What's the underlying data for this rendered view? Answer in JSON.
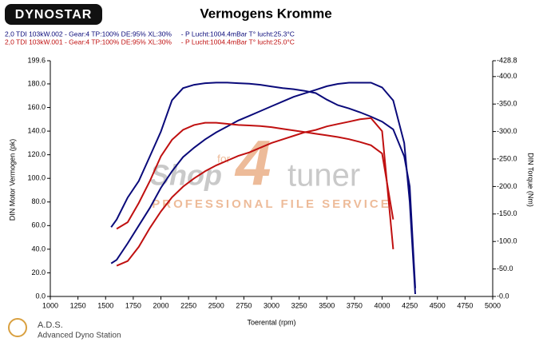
{
  "logo": "DYNOSTAR",
  "footer": {
    "brand": "A.D.S.",
    "subtitle": "Advanced Dyno Station"
  },
  "chart_data": {
    "type": "line",
    "title": "Vermogens Kromme",
    "xlabel": "Toerental (rpm)",
    "ylabel": "DIN Motor Vermogen (pk)",
    "y2label": "DIN Torque (Nm)",
    "annotations": [
      "Shop",
      "for",
      "4",
      "tuner",
      "PROFESSIONAL FILE SERVICE"
    ],
    "x": [
      1550,
      1600,
      1700,
      1800,
      1900,
      2000,
      2100,
      2200,
      2300,
      2400,
      2500,
      2600,
      2700,
      2800,
      2900,
      3000,
      3100,
      3200,
      3300,
      3400,
      3500,
      3600,
      3700,
      3800,
      3900,
      4000,
      4100,
      4200,
      4250,
      4300
    ],
    "series": [
      {
        "name": "2,0 TDI 103kW.002 - Gear:4 TP:100% DE:95% XL:30%     - P Lucht:1004.4mBar T° lucht:25.3°C",
        "color": "#0a0a7a",
        "values": [
          28,
          31,
          45,
          60,
          75,
          92,
          106,
          118,
          126,
          133,
          139,
          144,
          149,
          153,
          157,
          161,
          165,
          169,
          172,
          175,
          178,
          180,
          181,
          181,
          181,
          177,
          166,
          130,
          80,
          2
        ],
        "y2_values": [
          -126,
          -140,
          -180,
          -210,
          -255,
          -300,
          -357,
          -379,
          -385,
          -388,
          -389,
          -389,
          -388,
          -387,
          -385,
          -382,
          -379,
          -377,
          -374,
          -370,
          -358,
          -348,
          -342,
          -335,
          -327,
          -318,
          -304,
          -255,
          -200,
          -15
        ]
      },
      {
        "name": "2,0 TDI 103kW.001 - Gear:4 TP:100% DE:95% XL:30%     - P Lucht:1004.4mBar T° lucht:25.0°C",
        "color": "#c01010",
        "values": [
          null,
          26,
          30,
          42,
          58,
          72,
          84,
          93,
          100,
          106,
          111,
          115,
          119,
          122,
          126,
          130,
          133,
          136,
          139,
          141,
          144,
          146,
          148,
          150,
          151,
          140,
          40,
          null,
          null,
          null
        ],
        "y2_values": [
          null,
          -123,
          -135,
          -170,
          -210,
          -255,
          -285,
          -303,
          -312,
          -316,
          -316,
          -314,
          -312,
          -311,
          -310,
          -308,
          -305,
          -302,
          -299,
          -296,
          -293,
          -290,
          -286,
          -281,
          -275,
          -260,
          -140,
          null,
          null,
          null
        ]
      }
    ],
    "xlim": [
      1000,
      5000
    ],
    "xticks": [
      1000,
      1250,
      1500,
      1750,
      2000,
      2250,
      2500,
      2750,
      3000,
      3250,
      3500,
      3750,
      4000,
      4250,
      4500,
      4750,
      5000
    ],
    "ylim": [
      0,
      199.6
    ],
    "yticks": [
      {
        "value": 0,
        "label": "0.0"
      },
      {
        "value": 20,
        "label": "20.0"
      },
      {
        "value": 40,
        "label": "40.0"
      },
      {
        "value": 60,
        "label": "60.0"
      },
      {
        "value": 80,
        "label": "80.0"
      },
      {
        "value": 100,
        "label": "100.0"
      },
      {
        "value": 120,
        "label": "120.0"
      },
      {
        "value": 140,
        "label": "140.0"
      },
      {
        "value": 160,
        "label": "160.0"
      },
      {
        "value": 180,
        "label": "180.0"
      },
      {
        "value": 199.6,
        "label": "199.6"
      }
    ],
    "y2lim": [
      0,
      -428.8
    ],
    "y2ticks": [
      {
        "value": 0,
        "label": "-0.0"
      },
      {
        "value": -50,
        "label": "-50.0"
      },
      {
        "value": -100,
        "label": "-100.0"
      },
      {
        "value": -150,
        "label": "-150.0"
      },
      {
        "value": -200,
        "label": "-200.0"
      },
      {
        "value": -250,
        "label": "-250.0"
      },
      {
        "value": -300,
        "label": "-300.0"
      },
      {
        "value": -350,
        "label": "-350.0"
      },
      {
        "value": -400,
        "label": "-400.0"
      },
      {
        "value": -428.8,
        "label": "-428.8"
      }
    ],
    "grid": false
  }
}
